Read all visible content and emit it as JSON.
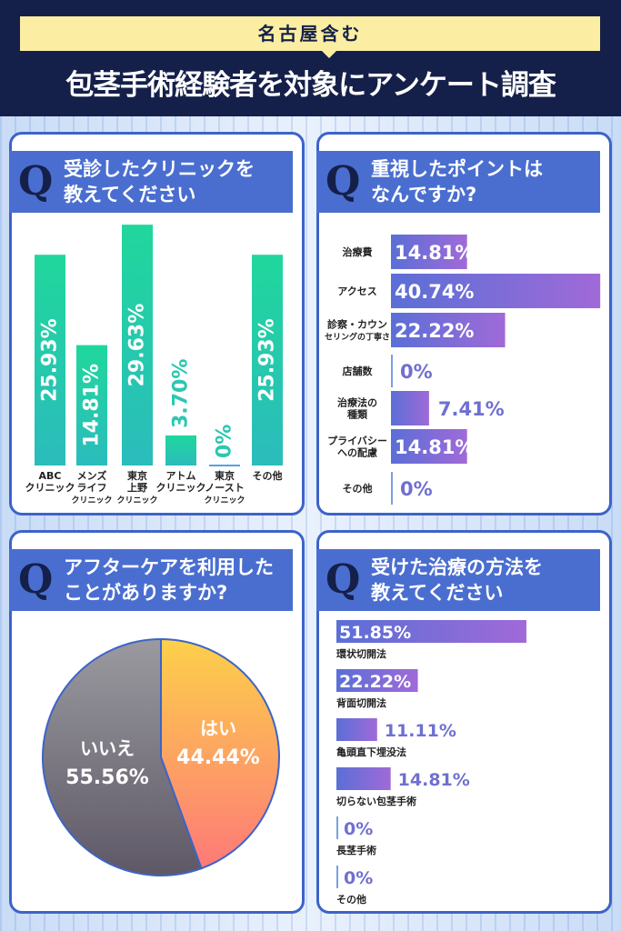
{
  "header": {
    "banner": "名古屋含む",
    "title": "包茎手術経験者を対象にアンケート調査"
  },
  "chart_data": [
    {
      "type": "bar",
      "title": "受診したクリニックを教えてください",
      "q": "Q",
      "categories": [
        "ABC クリニック",
        "メンズ ライフ クリニック",
        "東京 上野 クリニック",
        "アトム クリニック",
        "東京 ノースト クリニック",
        "その他"
      ],
      "category_lines": [
        [
          "ABC",
          "クリニック"
        ],
        [
          "メンズ",
          "ライフ",
          "クリニック"
        ],
        [
          "東京",
          "上野",
          "クリニック"
        ],
        [
          "アトム",
          "クリニック"
        ],
        [
          "東京",
          "ノースト",
          "クリニック"
        ],
        [
          "その他"
        ]
      ],
      "values": [
        25.93,
        14.81,
        29.63,
        3.7,
        0,
        25.93
      ],
      "labels": [
        "25.93%",
        "14.81%",
        "29.63%",
        "3.70%",
        "0%",
        "25.93%"
      ],
      "color": "#22cfa6"
    },
    {
      "type": "bar",
      "orientation": "horizontal",
      "title": "重視したポイントはなんですか?",
      "q": "Q",
      "categories": [
        "治療費",
        "アクセス",
        "診察・カウンセリングの丁寧さ",
        "店舗数",
        "治療法の種類",
        "プライバシーへの配慮",
        "その他"
      ],
      "category_lines": [
        [
          "治療費"
        ],
        [
          "アクセス"
        ],
        [
          "診察・カウン",
          "セリングの丁寧さ"
        ],
        [
          "店舗数"
        ],
        [
          "治療法の",
          "種類"
        ],
        [
          "プライバシー",
          "への配慮"
        ],
        [
          "その他"
        ]
      ],
      "values": [
        14.81,
        40.74,
        22.22,
        0,
        7.41,
        14.81,
        0
      ],
      "labels": [
        "14.81%",
        "40.74%",
        "22.22%",
        "0%",
        "7.41%",
        "14.81%",
        "0%"
      ],
      "color": "#7a62d8"
    },
    {
      "type": "pie",
      "title": "アフターケアを利用したことがありますか?",
      "q": "Q",
      "categories": [
        "はい",
        "いいえ"
      ],
      "values": [
        44.44,
        55.56
      ],
      "labels": [
        "44.44%",
        "55.56%"
      ],
      "colors": [
        "#fda55a",
        "#7a7a86"
      ]
    },
    {
      "type": "bar",
      "orientation": "horizontal",
      "title": "受けた治療の方法を教えてください",
      "q": "Q",
      "categories": [
        "環状切開法",
        "背面切開法",
        "亀頭直下埋没法",
        "切らない包茎手術",
        "長茎手術",
        "その他"
      ],
      "values": [
        51.85,
        22.22,
        11.11,
        14.81,
        0,
        0
      ],
      "labels": [
        "51.85%",
        "22.22%",
        "11.11%",
        "14.81%",
        "0%",
        "0%"
      ],
      "color": "#7a62d8"
    }
  ],
  "q_titles": [
    [
      "受診したクリニックを",
      "教えてください"
    ],
    [
      "重視したポイントは",
      "なんですか?"
    ],
    [
      "アフターケアを利用した",
      "ことがありますか?"
    ],
    [
      "受けた治療の方法を",
      "教えてください"
    ]
  ],
  "q_mark": "Q"
}
